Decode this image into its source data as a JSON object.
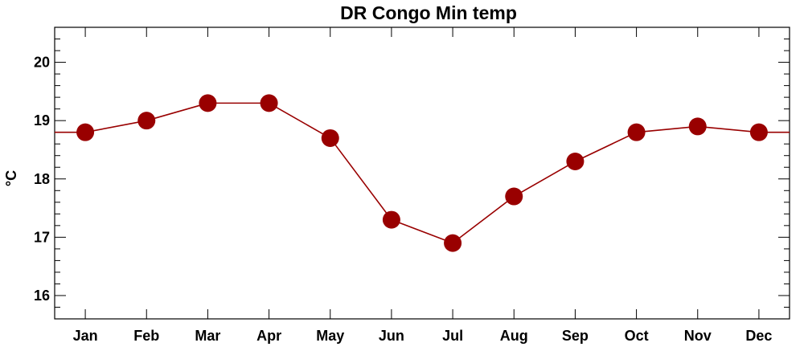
{
  "chart_data": {
    "type": "line",
    "title": "DR Congo Min temp",
    "xlabel": "",
    "ylabel": "°C",
    "categories": [
      "Jan",
      "Feb",
      "Mar",
      "Apr",
      "May",
      "Jun",
      "Jul",
      "Aug",
      "Sep",
      "Oct",
      "Nov",
      "Dec"
    ],
    "series": [
      {
        "values": [
          18.8,
          19.0,
          19.3,
          19.3,
          18.7,
          17.3,
          16.9,
          17.7,
          18.3,
          18.8,
          18.9,
          18.8
        ]
      }
    ],
    "ylim": [
      15.6,
      20.6
    ],
    "yticks": [
      16,
      17,
      18,
      19,
      20
    ],
    "line_wraps_edges": true,
    "grid": false,
    "legend": "none",
    "colors": {
      "series": "#990000",
      "axis": "#000000",
      "background": "#ffffff"
    }
  }
}
